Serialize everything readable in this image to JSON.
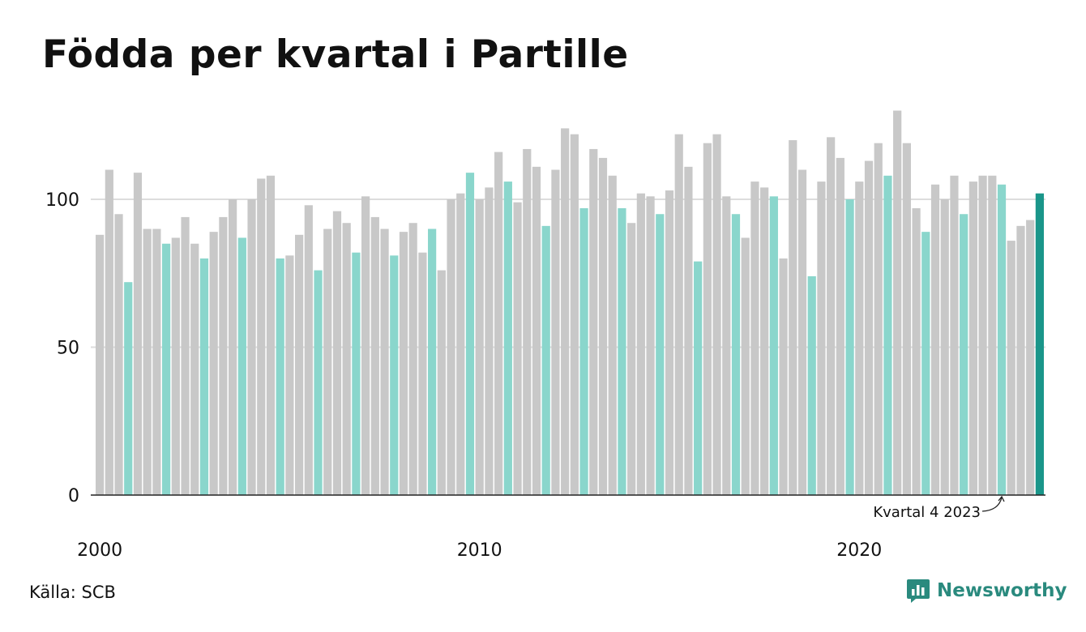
{
  "title": "Födda per kvartal i Partille",
  "source": "Källa: SCB",
  "brand": "Newsworthy",
  "colors": {
    "bar_default": "#c8c8c8",
    "bar_q4": "#8ad6cc",
    "bar_latest": "#1a968a",
    "gridline": "#dddddd",
    "axis": "#222222",
    "brand": "#2a8a7e"
  },
  "chart_data": {
    "type": "bar",
    "title": "Födda per kvartal i Partille",
    "xlabel": "",
    "ylabel": "",
    "ylim": [
      0,
      130
    ],
    "yticks": [
      0,
      50,
      100
    ],
    "xtick_labels": [
      {
        "label": "2000",
        "index": 0
      },
      {
        "label": "2010",
        "index": 40
      },
      {
        "label": "2020",
        "index": 80
      }
    ],
    "grid": "horizontal",
    "start_year": 2000,
    "values": [
      88,
      110,
      95,
      72,
      109,
      90,
      90,
      85,
      87,
      94,
      85,
      80,
      89,
      94,
      100,
      87,
      100,
      107,
      108,
      80,
      81,
      88,
      98,
      76,
      90,
      96,
      92,
      82,
      101,
      94,
      90,
      81,
      89,
      92,
      82,
      90,
      76,
      100,
      102,
      109,
      100,
      104,
      116,
      106,
      99,
      117,
      111,
      91,
      110,
      124,
      122,
      97,
      117,
      114,
      108,
      97,
      92,
      102,
      101,
      95,
      103,
      122,
      111,
      79,
      119,
      122,
      101,
      95,
      87,
      106,
      104,
      101,
      80,
      120,
      110,
      74,
      106,
      121,
      114,
      100,
      106,
      113,
      119,
      108,
      130,
      119,
      97,
      89,
      105,
      100,
      108,
      95,
      106,
      108,
      108,
      105,
      86,
      91,
      93,
      102
    ],
    "highlight_quarter": 4,
    "annotation": {
      "text": "Kvartal 4 2023",
      "index": 95
    }
  }
}
